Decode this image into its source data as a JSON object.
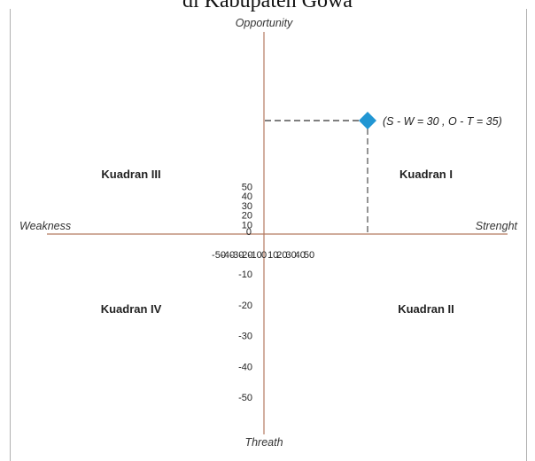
{
  "page": {
    "title": "di Kabupaten Gowa"
  },
  "chart_data": {
    "type": "scatter",
    "axis_labels": {
      "top": "Opportunity",
      "bottom": "Threath",
      "left": "Weakness",
      "right": "Strenght"
    },
    "xlim": [
      -50,
      50
    ],
    "ylim": [
      -50,
      50
    ],
    "x_ticks": [
      -50,
      -40,
      -30,
      -20,
      -10,
      0,
      10,
      20,
      30,
      40,
      50
    ],
    "x_tick_labels": [
      "-50",
      "-40",
      "-30",
      "-20",
      "-10",
      "0",
      "10",
      "20",
      "30",
      "40",
      "50"
    ],
    "y_ticks": [
      50,
      40,
      30,
      20,
      10,
      0,
      -10,
      -20,
      -30,
      -40,
      -50
    ],
    "y_tick_labels": [
      "50",
      "40",
      "30",
      "20",
      "10",
      "0",
      "-10",
      "-20",
      "-30",
      "-40",
      "-50"
    ],
    "quadrants": [
      {
        "label": "Kuadran III",
        "x": -30,
        "y": 20
      },
      {
        "label": "Kuadran I",
        "x": 30,
        "y": 20
      },
      {
        "label": "Kuadran IV",
        "x": -30,
        "y": -20
      },
      {
        "label": "Kuadran II",
        "x": 30,
        "y": -20
      }
    ],
    "points": [
      {
        "x": 30,
        "y": 35,
        "label": "(S - W = 30 , O - T = 35)",
        "color": "#2196d3"
      }
    ],
    "axis_color": "#b47a60",
    "grid": false
  }
}
